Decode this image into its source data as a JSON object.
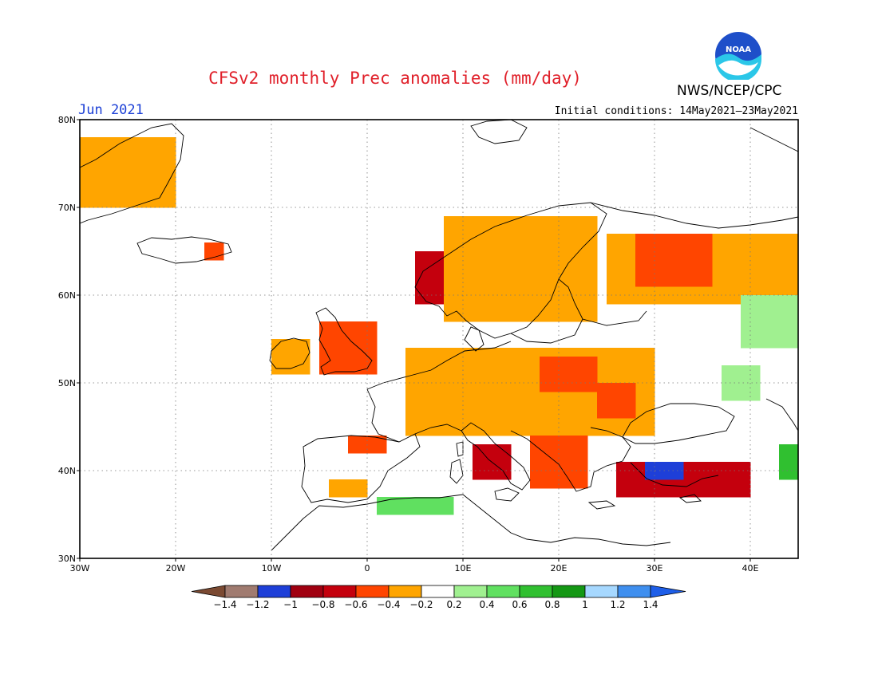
{
  "header": {
    "title": "CFSv2 monthly Prec anomalies (mm/day)",
    "month": "Jun 2021",
    "initial_conditions": "Initial conditions: 14May2021–23May2021",
    "agency": "NWS/NCEP/CPC",
    "logo_text": "NOAA"
  },
  "map": {
    "region": "Europe",
    "lon_range": [
      -30,
      45
    ],
    "lat_range": [
      30,
      80
    ],
    "lon_ticks": [
      {
        "value": -30,
        "label": "30W"
      },
      {
        "value": -20,
        "label": "20W"
      },
      {
        "value": -10,
        "label": "10W"
      },
      {
        "value": 0,
        "label": "0"
      },
      {
        "value": 10,
        "label": "10E"
      },
      {
        "value": 20,
        "label": "20E"
      },
      {
        "value": 30,
        "label": "30E"
      },
      {
        "value": 40,
        "label": "40E"
      }
    ],
    "lat_ticks": [
      {
        "value": 30,
        "label": "30N"
      },
      {
        "value": 40,
        "label": "40N"
      },
      {
        "value": 50,
        "label": "50N"
      },
      {
        "value": 60,
        "label": "60N"
      },
      {
        "value": 70,
        "label": "70N"
      },
      {
        "value": 80,
        "label": "80N"
      }
    ],
    "grid": true,
    "anomaly_patches": [
      {
        "name": "greenland",
        "level": -0.3,
        "lon": [
          -30,
          -21
        ],
        "lat": [
          70,
          78
        ]
      },
      {
        "name": "iceland-east",
        "level": -0.5,
        "lon": [
          -17,
          -15
        ],
        "lat": [
          64,
          66
        ]
      },
      {
        "name": "norway-coast",
        "level": -0.7,
        "lon": [
          5,
          8
        ],
        "lat": [
          59,
          64
        ]
      },
      {
        "name": "scandinavia",
        "level": -0.3,
        "lon": [
          8,
          24
        ],
        "lat": [
          57,
          69
        ]
      },
      {
        "name": "finland-russia",
        "level": -0.3,
        "lon": [
          25,
          45
        ],
        "lat": [
          59,
          67
        ]
      },
      {
        "name": "karelia",
        "level": -0.5,
        "lon": [
          28,
          35
        ],
        "lat": [
          61,
          66
        ]
      },
      {
        "name": "uk",
        "level": -0.5,
        "lon": [
          -5,
          0
        ],
        "lat": [
          51,
          57
        ]
      },
      {
        "name": "ireland",
        "level": -0.3,
        "lon": [
          -10,
          -6
        ],
        "lat": [
          51,
          54
        ]
      },
      {
        "name": "central-europe",
        "level": -0.3,
        "lon": [
          4,
          30
        ],
        "lat": [
          44,
          53
        ]
      },
      {
        "name": "poland",
        "level": -0.5,
        "lon": [
          18,
          23
        ],
        "lat": [
          49,
          53
        ]
      },
      {
        "name": "ukraine",
        "level": -0.5,
        "lon": [
          24,
          28
        ],
        "lat": [
          46,
          50
        ]
      },
      {
        "name": "italy",
        "level": -0.7,
        "lon": [
          11,
          15
        ],
        "lat": [
          39,
          42
        ]
      },
      {
        "name": "balkans",
        "level": -0.6,
        "lon": [
          17,
          22
        ],
        "lat": [
          38,
          43
        ]
      },
      {
        "name": "turkey",
        "level": -0.8,
        "lon": [
          26,
          40
        ],
        "lat": [
          37,
          41
        ]
      },
      {
        "name": "turkey-core",
        "level": -1.1,
        "lon": [
          29,
          33
        ],
        "lat": [
          39,
          41
        ]
      },
      {
        "name": "iberia-north",
        "level": -0.5,
        "lon": [
          -2,
          1
        ],
        "lat": [
          42,
          44
        ]
      },
      {
        "name": "iberia-south",
        "level": -0.3,
        "lon": [
          -4,
          -1
        ],
        "lat": [
          37,
          39
        ]
      },
      {
        "name": "north-africa",
        "level": 0.5,
        "lon": [
          1,
          8
        ],
        "lat": [
          35,
          37
        ]
      },
      {
        "name": "russia-east",
        "level": 0.3,
        "lon": [
          39,
          45
        ],
        "lat": [
          54,
          60
        ]
      },
      {
        "name": "caucasus",
        "level": 0.7,
        "lon": [
          43,
          45
        ],
        "lat": [
          39,
          43
        ]
      },
      {
        "name": "russia-south",
        "level": 0.3,
        "lon": [
          37,
          41
        ],
        "lat": [
          48,
          51
        ]
      }
    ]
  },
  "colorbar": {
    "labels": [
      "-1.4",
      "-1.2",
      "-1",
      "-0.8",
      "-0.6",
      "-0.4",
      "-0.2",
      "0.2",
      "0.4",
      "0.6",
      "0.8",
      "1",
      "1.2",
      "1.4"
    ],
    "colors": [
      "#7b4a32",
      "#a07b70",
      "#1e3fd8",
      "#a00010",
      "#c4000d",
      "#ff4500",
      "#ffa500",
      "#ffffff",
      "#a0f090",
      "#60e060",
      "#30c030",
      "#149814",
      "#a6d8ff",
      "#3f8fef",
      "#1e5ee8"
    ]
  },
  "chart_data": {
    "type": "heatmap",
    "title": "CFSv2 monthly Prec anomalies (mm/day)",
    "xlim": [
      -30,
      45
    ],
    "ylim": [
      30,
      80
    ],
    "xticks": [
      "30W",
      "20W",
      "10W",
      "0",
      "10E",
      "20E",
      "30E",
      "40E"
    ],
    "yticks": [
      "30N",
      "40N",
      "50N",
      "60N",
      "70N",
      "80N"
    ]
  }
}
